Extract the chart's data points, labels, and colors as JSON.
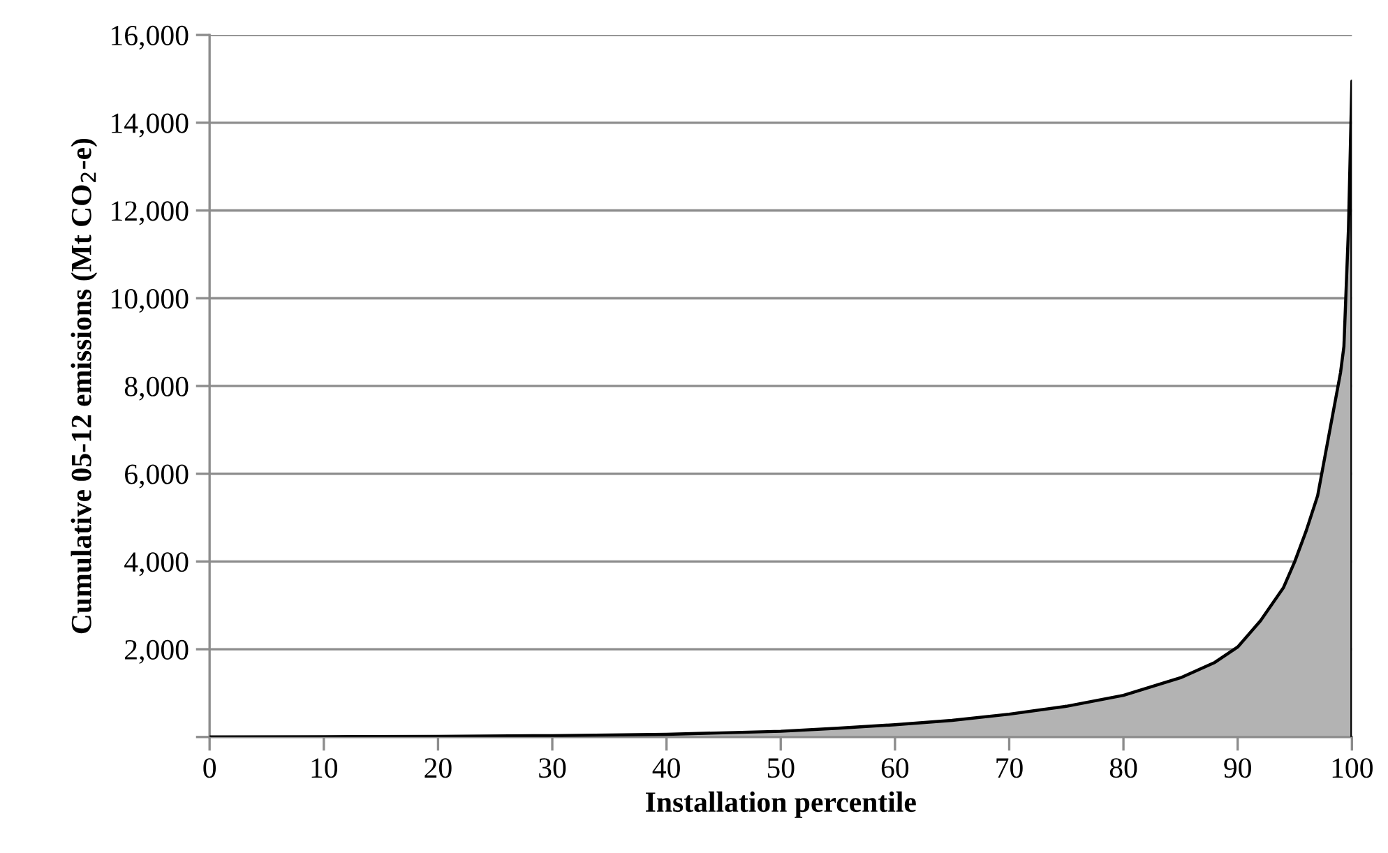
{
  "chart_data": {
    "type": "area",
    "xlabel": "Installation percentile",
    "ylabel": "Cumulative 05-12 emissions (Mt CO$_{2}$-e)",
    "series": [
      {
        "color": "#b3b3b3",
        "x": [
          0,
          10,
          20,
          30,
          40,
          50,
          55,
          60,
          65,
          70,
          75,
          80,
          85,
          88,
          90,
          92,
          94,
          95,
          96,
          97,
          98,
          99,
          99.3,
          99.7,
          100
        ],
        "values": [
          0,
          5,
          15,
          30,
          60,
          130,
          200,
          280,
          380,
          520,
          700,
          950,
          1350,
          1700,
          2050,
          2650,
          3400,
          4000,
          4700,
          5500,
          6900,
          8300,
          8900,
          11600,
          14950
        ]
      }
    ],
    "xlim": [
      0,
      100
    ],
    "xticks": [
      0,
      10,
      20,
      30,
      40,
      50,
      60,
      70,
      80,
      90,
      100
    ],
    "ylim": [
      0,
      16000
    ],
    "yticks": [
      {
        "value": 0,
        "label": null
      },
      {
        "value": 2000,
        "label": "2,000"
      },
      {
        "value": 4000,
        "label": "4,000"
      },
      {
        "value": 6000,
        "label": "6,000"
      },
      {
        "value": 8000,
        "label": "8,000"
      },
      {
        "value": 10000,
        "label": "10,000"
      },
      {
        "value": 12000,
        "label": "12,000"
      },
      {
        "value": 14000,
        "label": "14,000"
      },
      {
        "value": 16000,
        "label": "16,000"
      }
    ],
    "grid": "y"
  }
}
